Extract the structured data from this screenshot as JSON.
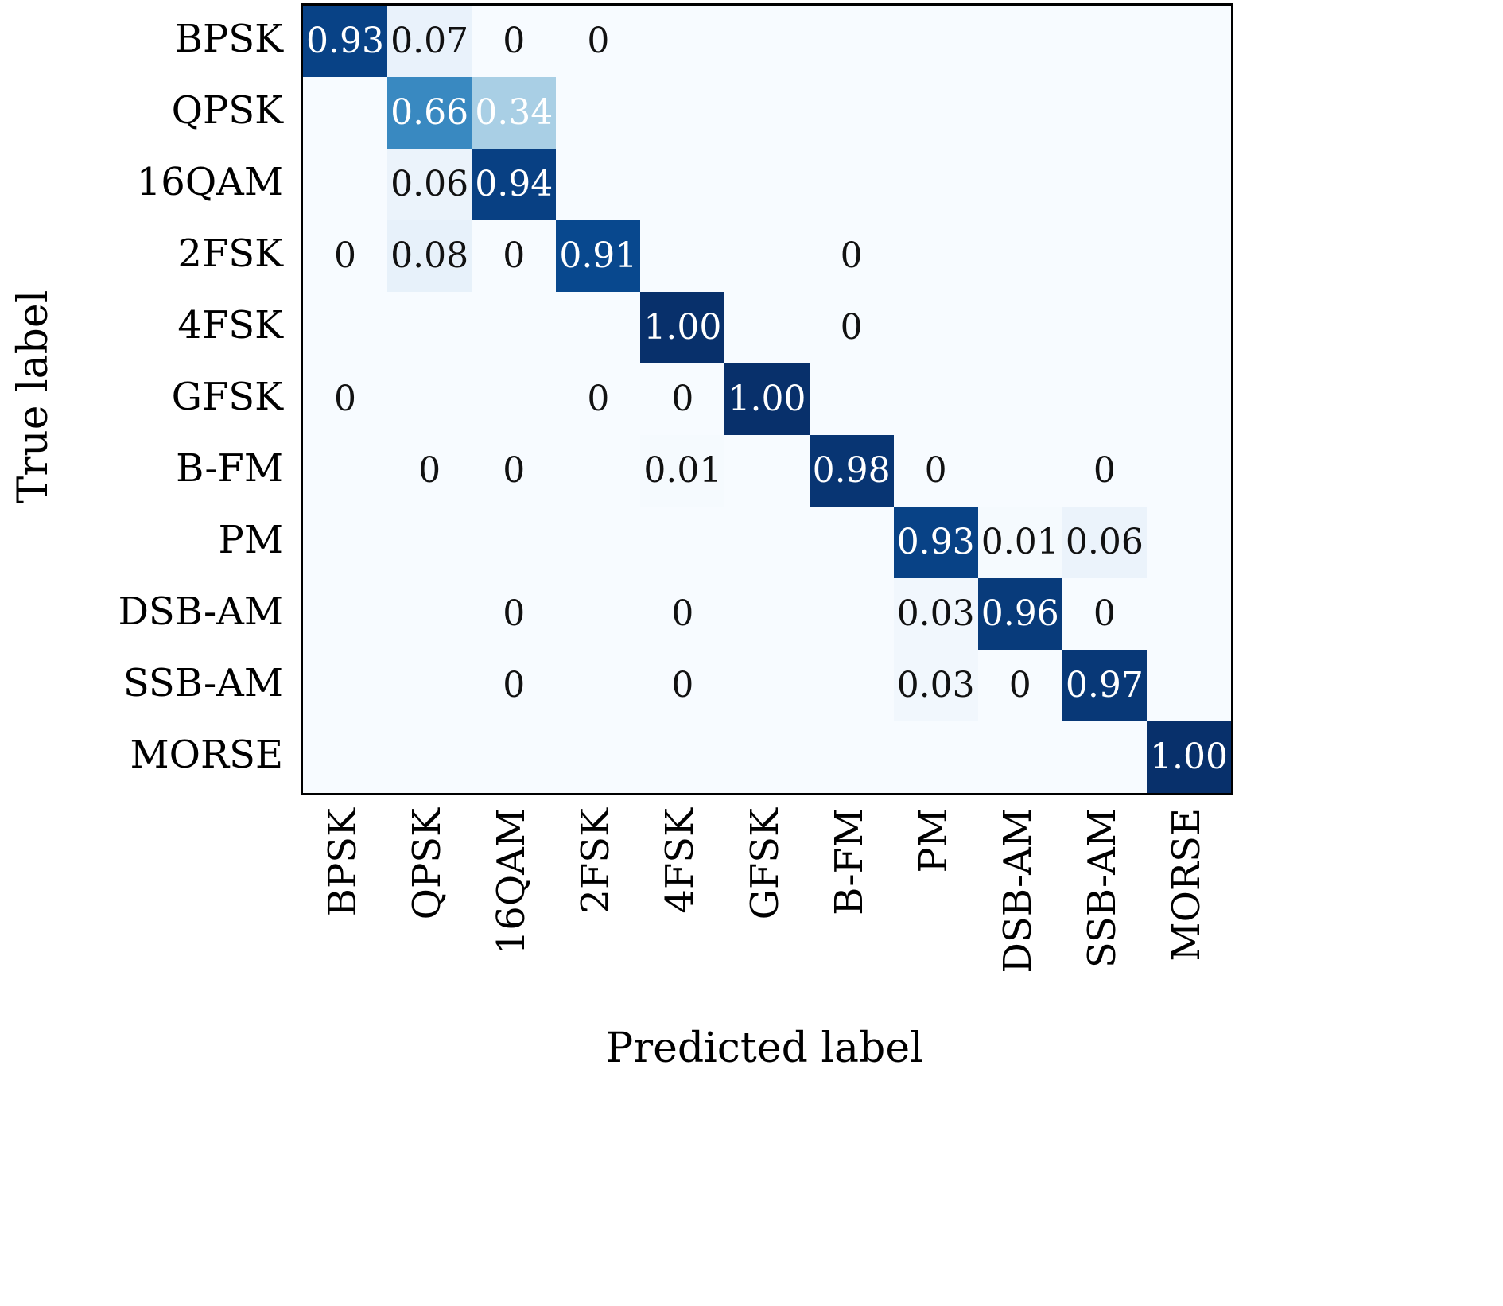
{
  "chart_data": {
    "type": "heatmap",
    "title": "",
    "xlabel": "Predicted label",
    "ylabel": "True label",
    "colormap": "Blues",
    "colormap_stops": [
      "#f7fbff",
      "#deebf7",
      "#c6dbef",
      "#9ecae1",
      "#6baed6",
      "#4292c6",
      "#2171b5",
      "#08519c",
      "#08306b"
    ],
    "categories": [
      "BPSK",
      "QPSK",
      "16QAM",
      "2FSK",
      "4FSK",
      "GFSK",
      "B-FM",
      "PM",
      "DSB-AM",
      "SSB-AM",
      "MORSE"
    ],
    "values": [
      [
        0.93,
        0.07,
        0,
        0,
        0,
        0,
        0,
        0,
        0,
        0,
        0
      ],
      [
        0,
        0.66,
        0.34,
        0,
        0,
        0,
        0,
        0,
        0,
        0,
        0
      ],
      [
        0,
        0.06,
        0.94,
        0,
        0,
        0,
        0,
        0,
        0,
        0,
        0
      ],
      [
        0,
        0.08,
        0,
        0.91,
        0,
        0,
        0,
        0,
        0,
        0,
        0
      ],
      [
        0,
        0,
        0,
        0,
        1.0,
        0,
        0,
        0,
        0,
        0,
        0
      ],
      [
        0,
        0,
        0,
        0,
        0,
        1.0,
        0,
        0,
        0,
        0,
        0
      ],
      [
        0,
        0,
        0,
        0,
        0.01,
        0,
        0.98,
        0,
        0,
        0,
        0
      ],
      [
        0,
        0,
        0,
        0,
        0,
        0,
        0,
        0.93,
        0.01,
        0.06,
        0
      ],
      [
        0,
        0,
        0,
        0,
        0,
        0,
        0,
        0.03,
        0.96,
        0,
        0
      ],
      [
        0,
        0,
        0,
        0,
        0,
        0,
        0,
        0.03,
        0,
        0.97,
        0
      ],
      [
        0,
        0,
        0,
        0,
        0,
        0,
        0,
        0,
        0,
        0,
        1.0
      ]
    ],
    "cell_labels": [
      [
        "0.93",
        "0.07",
        "0",
        "0",
        "",
        "",
        "",
        "",
        "",
        "",
        ""
      ],
      [
        "",
        "0.66",
        "0.34",
        "",
        "",
        "",
        "",
        "",
        "",
        "",
        ""
      ],
      [
        "",
        "0.06",
        "0.94",
        "",
        "",
        "",
        "",
        "",
        "",
        "",
        ""
      ],
      [
        "0",
        "0.08",
        "0",
        "0.91",
        "",
        "",
        "0",
        "",
        "",
        "",
        ""
      ],
      [
        "",
        "",
        "",
        "",
        "1.00",
        "",
        "0",
        "",
        "",
        "",
        ""
      ],
      [
        "0",
        "",
        "",
        "0",
        "0",
        "1.00",
        "",
        "",
        "",
        "",
        ""
      ],
      [
        "",
        "0",
        "0",
        "",
        "0.01",
        "",
        "0.98",
        "0",
        "",
        "0",
        ""
      ],
      [
        "",
        "",
        "",
        "",
        "",
        "",
        "",
        "0.93",
        "0.01",
        "0.06",
        ""
      ],
      [
        "",
        "",
        "0",
        "",
        "0",
        "",
        "",
        "0.03",
        "0.96",
        "0",
        ""
      ],
      [
        "",
        "",
        "0",
        "",
        "0",
        "",
        "",
        "0.03",
        "0",
        "0.97",
        ""
      ],
      [
        "",
        "",
        "",
        "",
        "",
        "",
        "",
        "",
        "",
        "",
        "1.00"
      ]
    ]
  }
}
